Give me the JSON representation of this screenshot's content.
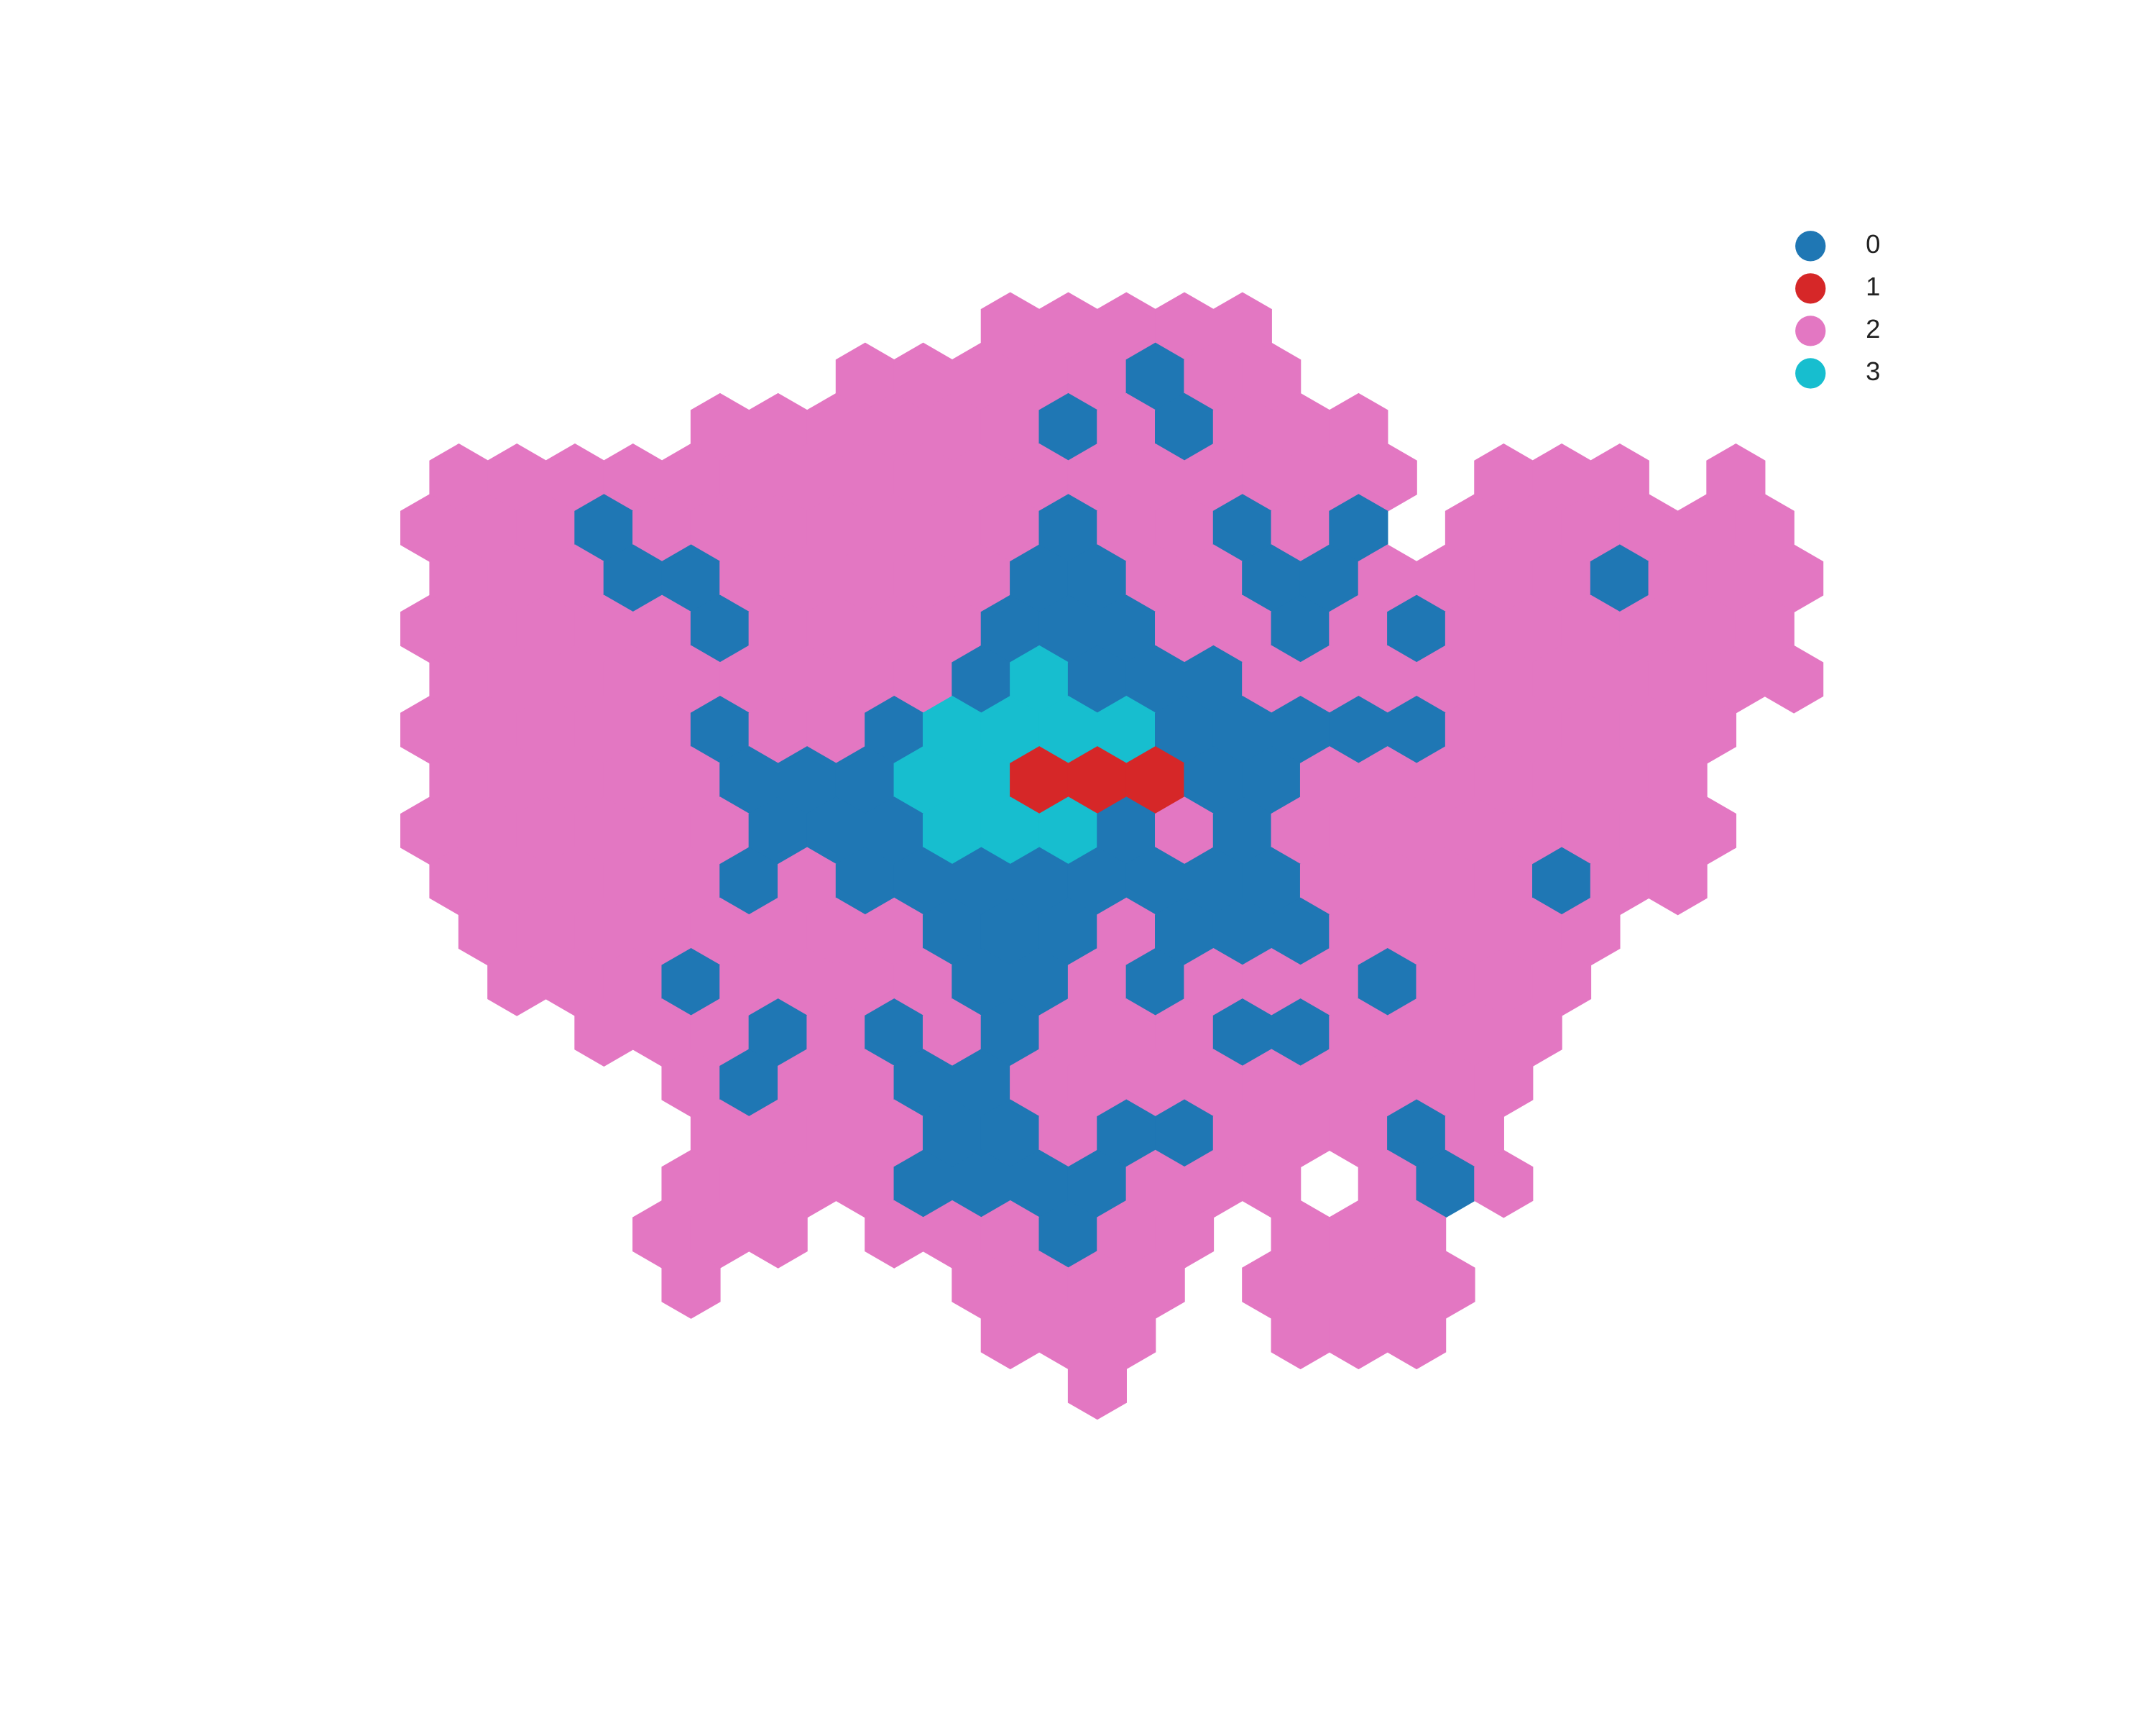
{
  "map": {
    "type": "hexmap",
    "legend": [
      {
        "label": "0",
        "color": "#1f77b4"
      },
      {
        "label": "1",
        "color": "#d62728"
      },
      {
        "label": "2",
        "color": "#e377c2"
      },
      {
        "label": "3",
        "color": "#17becf"
      }
    ],
    "rows": [
      [
        null,
        null,
        null,
        null,
        null,
        null,
        null,
        null,
        null,
        null,
        2,
        2,
        2,
        2,
        2,
        null,
        null,
        null,
        null,
        null,
        null,
        null,
        null,
        null
      ],
      [
        null,
        null,
        null,
        null,
        null,
        null,
        null,
        2,
        2,
        2,
        2,
        2,
        0,
        2,
        2,
        null,
        null,
        null,
        null,
        null,
        null,
        null,
        null,
        null
      ],
      [
        null,
        null,
        null,
        null,
        null,
        2,
        2,
        2,
        2,
        2,
        2,
        0,
        2,
        0,
        2,
        2,
        2,
        null,
        null,
        null,
        null,
        null,
        null,
        null
      ],
      [
        2,
        2,
        2,
        2,
        2,
        2,
        2,
        2,
        2,
        2,
        2,
        2,
        2,
        2,
        2,
        2,
        2,
        null,
        2,
        2,
        2,
        null,
        2,
        null
      ],
      [
        2,
        2,
        2,
        0,
        2,
        2,
        2,
        2,
        2,
        2,
        2,
        0,
        2,
        2,
        0,
        2,
        0,
        null,
        2,
        2,
        2,
        2,
        2,
        2
      ],
      [
        2,
        2,
        2,
        0,
        0,
        2,
        2,
        2,
        2,
        2,
        0,
        0,
        2,
        2,
        0,
        0,
        2,
        2,
        2,
        2,
        0,
        2,
        2,
        2
      ],
      [
        2,
        2,
        2,
        2,
        2,
        0,
        2,
        2,
        2,
        2,
        0,
        0,
        0,
        2,
        2,
        0,
        2,
        0,
        2,
        2,
        2,
        2,
        2,
        2
      ],
      [
        2,
        2,
        2,
        2,
        2,
        2,
        2,
        2,
        2,
        0,
        3,
        0,
        0,
        0,
        2,
        2,
        2,
        2,
        2,
        2,
        2,
        2,
        2,
        2
      ],
      [
        2,
        2,
        2,
        2,
        2,
        0,
        2,
        2,
        0,
        3,
        3,
        3,
        3,
        0,
        0,
        0,
        0,
        0,
        2,
        2,
        2,
        2,
        2,
        null
      ],
      [
        2,
        2,
        2,
        2,
        2,
        0,
        0,
        0,
        3,
        3,
        1,
        1,
        1,
        0,
        0,
        2,
        2,
        2,
        2,
        2,
        2,
        2,
        null,
        null
      ],
      [
        2,
        2,
        2,
        2,
        2,
        2,
        0,
        0,
        0,
        3,
        3,
        3,
        0,
        2,
        0,
        2,
        2,
        2,
        2,
        2,
        2,
        2,
        2,
        null
      ],
      [
        2,
        2,
        2,
        2,
        2,
        0,
        2,
        0,
        0,
        0,
        0,
        0,
        0,
        0,
        0,
        2,
        2,
        2,
        2,
        0,
        2,
        2,
        null,
        null
      ],
      [
        null,
        2,
        2,
        2,
        2,
        2,
        2,
        2,
        2,
        0,
        0,
        0,
        2,
        0,
        0,
        0,
        2,
        2,
        2,
        2,
        2,
        null,
        null,
        null
      ],
      [
        null,
        2,
        2,
        2,
        0,
        2,
        2,
        2,
        2,
        0,
        0,
        2,
        0,
        2,
        2,
        2,
        0,
        2,
        2,
        2,
        null,
        null,
        null,
        null
      ],
      [
        null,
        null,
        null,
        2,
        2,
        2,
        0,
        2,
        0,
        2,
        0,
        2,
        2,
        2,
        0,
        0,
        2,
        2,
        2,
        2,
        null,
        null,
        null,
        null
      ],
      [
        null,
        null,
        null,
        null,
        2,
        0,
        2,
        2,
        0,
        0,
        2,
        2,
        2,
        2,
        2,
        2,
        2,
        2,
        2,
        null,
        null,
        null,
        null,
        null
      ],
      [
        null,
        null,
        null,
        null,
        null,
        2,
        2,
        2,
        2,
        0,
        0,
        2,
        0,
        0,
        2,
        2,
        2,
        0,
        2,
        null,
        null,
        null,
        null,
        null
      ],
      [
        null,
        null,
        null,
        null,
        2,
        2,
        2,
        2,
        0,
        0,
        0,
        0,
        2,
        2,
        2,
        null,
        2,
        0,
        2,
        null,
        null,
        null,
        null,
        null
      ],
      [
        null,
        null,
        null,
        null,
        2,
        2,
        2,
        null,
        2,
        2,
        2,
        0,
        2,
        2,
        null,
        2,
        2,
        2,
        null,
        null,
        null,
        null,
        null,
        null
      ],
      [
        null,
        null,
        null,
        null,
        2,
        null,
        null,
        null,
        null,
        2,
        2,
        2,
        2,
        null,
        2,
        2,
        2,
        2,
        null,
        null,
        null,
        null,
        null,
        null
      ],
      [
        null,
        null,
        null,
        null,
        null,
        null,
        null,
        null,
        null,
        null,
        2,
        2,
        2,
        null,
        null,
        2,
        2,
        2,
        null,
        null,
        null,
        null,
        null,
        null
      ],
      [
        null,
        null,
        null,
        null,
        null,
        null,
        null,
        null,
        null,
        null,
        null,
        2,
        null,
        null,
        null,
        null,
        null,
        null,
        null,
        null,
        null,
        null,
        null,
        null
      ]
    ]
  }
}
